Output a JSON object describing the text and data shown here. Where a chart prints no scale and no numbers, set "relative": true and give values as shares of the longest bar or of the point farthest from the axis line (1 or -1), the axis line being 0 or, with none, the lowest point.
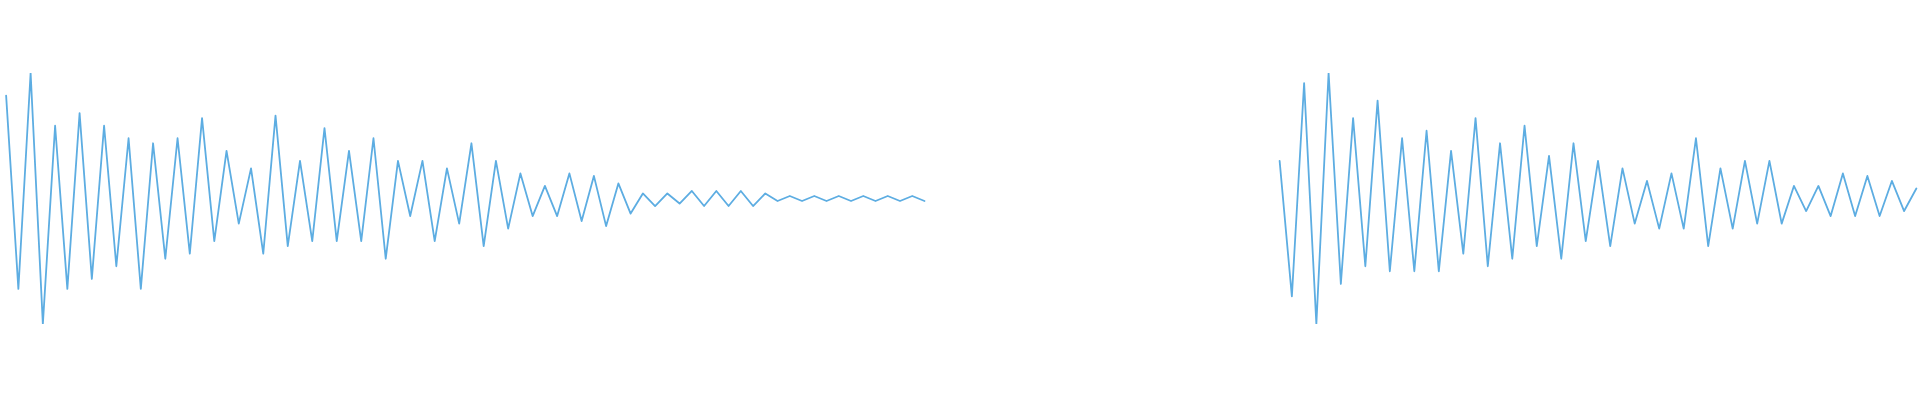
{
  "chart_data": [
    {
      "type": "line",
      "relative": true,
      "categories": [
        null,
        null,
        null,
        null,
        null,
        null,
        null,
        null,
        null,
        null,
        null,
        null,
        null,
        null,
        null,
        null,
        null,
        null,
        null,
        null,
        null,
        null,
        null,
        null,
        null,
        null,
        null,
        null,
        null,
        null,
        null,
        null,
        null,
        null,
        null,
        null,
        null,
        null,
        null,
        null,
        null,
        null,
        null,
        null,
        null,
        null,
        null,
        null,
        null,
        null,
        null,
        null,
        null,
        null,
        null,
        null,
        null,
        null,
        null,
        null,
        null,
        null,
        null,
        null,
        null,
        null,
        null,
        null,
        null,
        null,
        null,
        null,
        null,
        null,
        null,
        null
      ],
      "series": [
        {
          "color": "#5dade2",
          "values": [
            0.91,
            0.14,
            1.0,
            0.0,
            0.79,
            0.14,
            0.84,
            0.18,
            0.79,
            0.23,
            0.74,
            0.14,
            0.72,
            0.26,
            0.74,
            0.28,
            0.82,
            0.33,
            0.69,
            0.4,
            0.62,
            0.28,
            0.83,
            0.31,
            0.65,
            0.33,
            0.78,
            0.33,
            0.69,
            0.33,
            0.74,
            0.26,
            0.65,
            0.43,
            0.65,
            0.33,
            0.62,
            0.4,
            0.72,
            0.31,
            0.65,
            0.38,
            0.6,
            0.43,
            0.55,
            0.43,
            0.6,
            0.41,
            0.59,
            0.39,
            0.56,
            0.44,
            0.52,
            0.47,
            0.52,
            0.48,
            0.53,
            0.47,
            0.53,
            0.47,
            0.53,
            0.47,
            0.52,
            0.49,
            0.51,
            0.49,
            0.51,
            0.49,
            0.51,
            0.49,
            0.51,
            0.49,
            0.51,
            0.49,
            0.51,
            0.49
          ]
        }
      ]
    },
    {
      "type": "line",
      "relative": true,
      "categories": [
        null,
        null,
        null,
        null,
        null,
        null,
        null,
        null,
        null,
        null,
        null,
        null,
        null,
        null,
        null,
        null,
        null,
        null,
        null,
        null,
        null,
        null,
        null,
        null,
        null,
        null,
        null,
        null,
        null,
        null,
        null,
        null,
        null,
        null,
        null,
        null,
        null,
        null,
        null,
        null,
        null,
        null,
        null,
        null,
        null,
        null,
        null,
        null,
        null,
        null,
        null,
        null,
        null
      ],
      "series": [
        {
          "color": "#5dade2",
          "values": [
            0.65,
            0.11,
            0.96,
            0.0,
            1.0,
            0.16,
            0.82,
            0.23,
            0.89,
            0.21,
            0.74,
            0.21,
            0.77,
            0.21,
            0.69,
            0.28,
            0.82,
            0.23,
            0.72,
            0.26,
            0.79,
            0.31,
            0.67,
            0.26,
            0.72,
            0.33,
            0.65,
            0.31,
            0.62,
            0.4,
            0.57,
            0.38,
            0.6,
            0.38,
            0.74,
            0.31,
            0.62,
            0.38,
            0.65,
            0.4,
            0.65,
            0.4,
            0.55,
            0.45,
            0.55,
            0.43,
            0.6,
            0.43,
            0.59,
            0.43,
            0.57,
            0.45,
            0.54
          ]
        }
      ]
    }
  ]
}
